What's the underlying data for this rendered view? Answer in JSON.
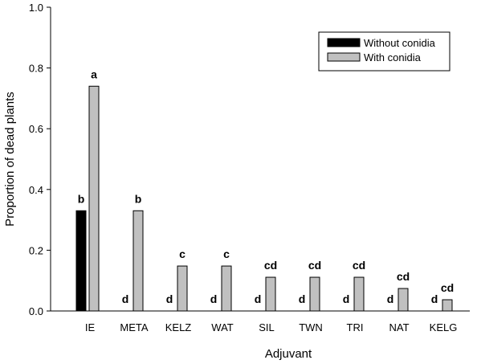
{
  "chart_data": {
    "type": "bar",
    "title": "",
    "xlabel": "Adjuvant",
    "ylabel": "Proportion of dead plants",
    "ylim": [
      0,
      1.0
    ],
    "yticks": [
      "0.0",
      "0.2",
      "0.4",
      "0.6",
      "0.8",
      "1.0"
    ],
    "categories": [
      "IE",
      "META",
      "KELZ",
      "WAT",
      "SIL",
      "TWN",
      "TRI",
      "NAT",
      "KELG"
    ],
    "series": [
      {
        "name": "Without conidia",
        "color": "#000000",
        "values": [
          0.33,
          0,
          0,
          0,
          0,
          0,
          0,
          0,
          0
        ],
        "letters": [
          "b",
          "d",
          "d",
          "d",
          "d",
          "d",
          "d",
          "d",
          "d"
        ]
      },
      {
        "name": "With conidia",
        "color": "#c0c0c0",
        "values": [
          0.74,
          0.33,
          0.148,
          0.148,
          0.111,
          0.111,
          0.111,
          0.074,
          0.037
        ],
        "letters": [
          "a",
          "b",
          "c",
          "c",
          "cd",
          "cd",
          "cd",
          "cd",
          "cd"
        ]
      }
    ],
    "legend_position": "top-right",
    "grid": false
  }
}
